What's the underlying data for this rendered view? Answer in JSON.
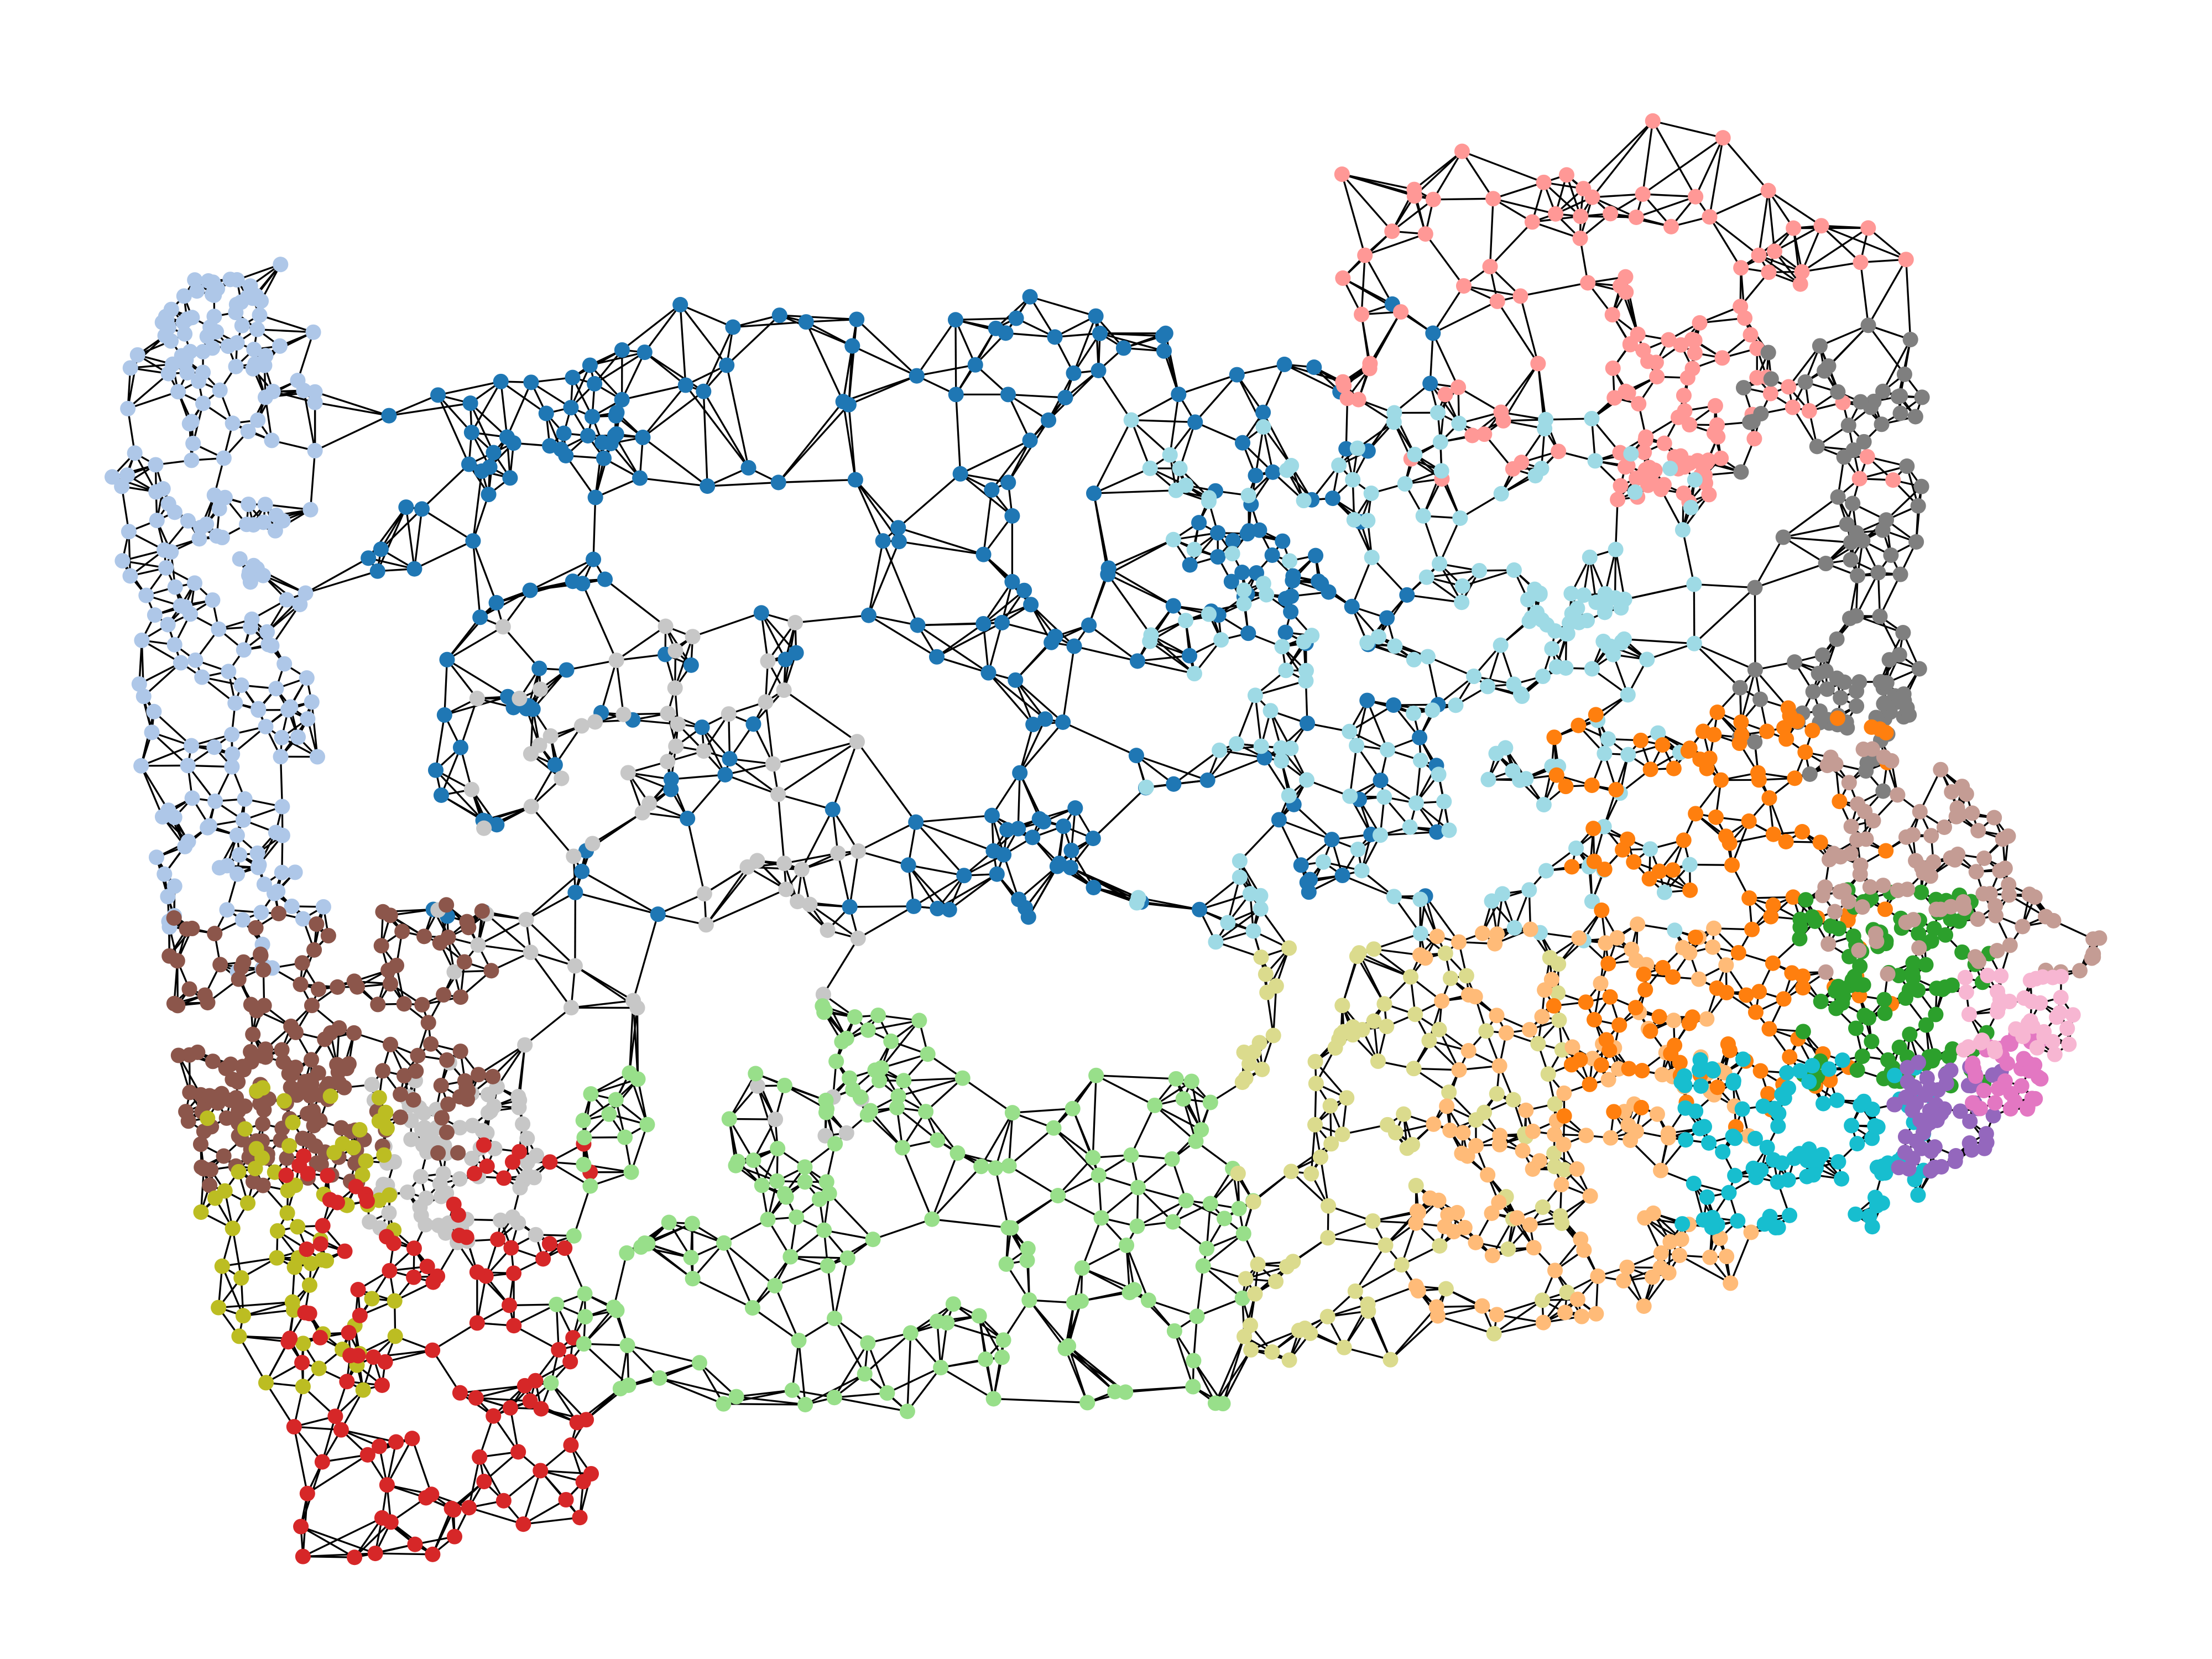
{
  "graph": {
    "type": "planar-partition-network",
    "edge_color": "#000000",
    "districts": [
      {
        "id": "d01",
        "color": "#1f77b4",
        "region": "north-central"
      },
      {
        "id": "d02",
        "color": "#aec7e8",
        "region": "north-west"
      },
      {
        "id": "d03",
        "color": "#ff9896",
        "region": "north-east"
      },
      {
        "id": "d04",
        "color": "#9edae5",
        "region": "east-central"
      },
      {
        "id": "d05",
        "color": "#7f7f7f",
        "region": "far-east"
      },
      {
        "id": "d06",
        "color": "#c7c7c7",
        "region": "west-central"
      },
      {
        "id": "d07",
        "color": "#8c564b",
        "region": "south-west"
      },
      {
        "id": "d08",
        "color": "#bcbd22",
        "region": "far-south-west"
      },
      {
        "id": "d09",
        "color": "#d62728",
        "region": "south-west-corner"
      },
      {
        "id": "d10",
        "color": "#98df8a",
        "region": "south-central"
      },
      {
        "id": "d11",
        "color": "#dbdb8d",
        "region": "south-central-east"
      },
      {
        "id": "d12",
        "color": "#ffbb78",
        "region": "south-east"
      },
      {
        "id": "d13",
        "color": "#ff7f0e",
        "region": "east"
      },
      {
        "id": "d14",
        "color": "#2ca02c",
        "region": "south-east-metro"
      },
      {
        "id": "d15",
        "color": "#c49c94",
        "region": "far-east-metro"
      },
      {
        "id": "d16",
        "color": "#17becf",
        "region": "south-east-edge"
      },
      {
        "id": "d17",
        "color": "#9467bd",
        "region": "south-east-corner"
      },
      {
        "id": "d18",
        "color": "#e377c2",
        "region": "south-east-metro-core"
      },
      {
        "id": "d19",
        "color": "#f7b6d2",
        "region": "east-metro-core"
      }
    ]
  }
}
